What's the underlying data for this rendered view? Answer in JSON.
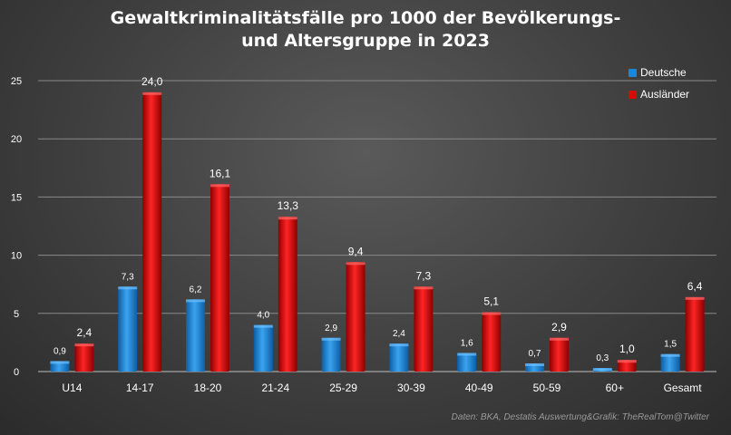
{
  "colors": {
    "deutsche": "#1f86d6",
    "auslaender": "#d90a0a"
  },
  "chart_data": {
    "type": "bar",
    "title_lines": [
      "Gewaltkriminalitätsfälle pro 1000 der Bevölkerungs-",
      "und Altersgruppe in 2023"
    ],
    "categories": [
      "U14",
      "14-17",
      "18-20",
      "21-24",
      "25-29",
      "30-39",
      "40-49",
      "50-59",
      "60+",
      "Gesamt"
    ],
    "series": [
      {
        "name": "Deutsche",
        "values": [
          0.9,
          7.3,
          6.2,
          4.0,
          2.9,
          2.4,
          1.6,
          0.7,
          0.3,
          1.5
        ],
        "labels": [
          "0,9",
          "7,3",
          "6,2",
          "4,0",
          "2,9",
          "2,4",
          "1,6",
          "0,7",
          "0,3",
          "1,5"
        ]
      },
      {
        "name": "Ausländer",
        "values": [
          2.4,
          24.0,
          16.1,
          13.3,
          9.4,
          7.3,
          5.1,
          2.9,
          1.0,
          6.4
        ],
        "labels": [
          "2,4",
          "24,0",
          "16,1",
          "13,3",
          "9,4",
          "7,3",
          "5,1",
          "2,9",
          "1,0",
          "6,4"
        ]
      }
    ],
    "ylim": [
      0,
      25
    ],
    "yticks": [
      0,
      5,
      10,
      15,
      20,
      25
    ],
    "grid": true,
    "legend": "top-right",
    "source": "Daten: BKA, Destatis Auswertung&Grafik: TheRealTom@Twitter"
  }
}
